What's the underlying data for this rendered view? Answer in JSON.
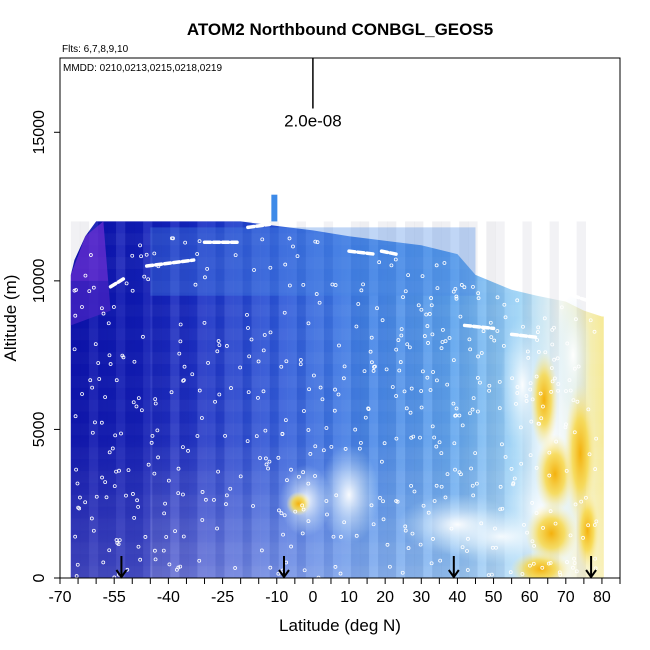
{
  "chart_data": {
    "type": "heatmap",
    "title": "ATOM2 Northbound CONBGL_GEOS5",
    "subtitle_flights": "Flts: 6,7,8,9,10",
    "subtitle_dates": "MMDD: 0210,0213,0215,0218,0219",
    "xlabel": "Latitude (deg N)",
    "ylabel": "Altitude (m)",
    "xlim": [
      -70,
      85
    ],
    "ylim": [
      0,
      17500
    ],
    "x_ticks": [
      {
        "value": -70,
        "label": "-70"
      },
      {
        "value": -55,
        "label": "-55"
      },
      {
        "value": -40,
        "label": "-40"
      },
      {
        "value": -25,
        "label": "-25"
      },
      {
        "value": -10,
        "label": "-10"
      },
      {
        "value": 0,
        "label": "0"
      },
      {
        "value": 10,
        "label": "10"
      },
      {
        "value": 20,
        "label": "20"
      },
      {
        "value": 30,
        "label": "30"
      },
      {
        "value": 40,
        "label": "40"
      },
      {
        "value": 50,
        "label": "50"
      },
      {
        "value": 60,
        "label": "60"
      },
      {
        "value": 70,
        "label": "70"
      },
      {
        "value": 80,
        "label": "80"
      }
    ],
    "y_ticks": [
      {
        "value": 0,
        "label": "0"
      },
      {
        "value": 5000,
        "label": "5000"
      },
      {
        "value": 10000,
        "label": "10000"
      },
      {
        "value": 15000,
        "label": "15000"
      }
    ],
    "scale_bar": {
      "label": "2.0e-08",
      "x": 0,
      "y_bottom": 15800,
      "y_top": 17500
    },
    "arrow_markers_lat": [
      -53,
      -8,
      39,
      77
    ],
    "colors": {
      "dark_blue": "#0a14b4",
      "mid_blue": "#3c7ae6",
      "light_blue": "#8ccdf5",
      "white": "#fafaf5",
      "yellow": "#f7df5a",
      "orange": "#f2b41c",
      "violet": "#6a2fd2",
      "frame": "#000000"
    }
  }
}
